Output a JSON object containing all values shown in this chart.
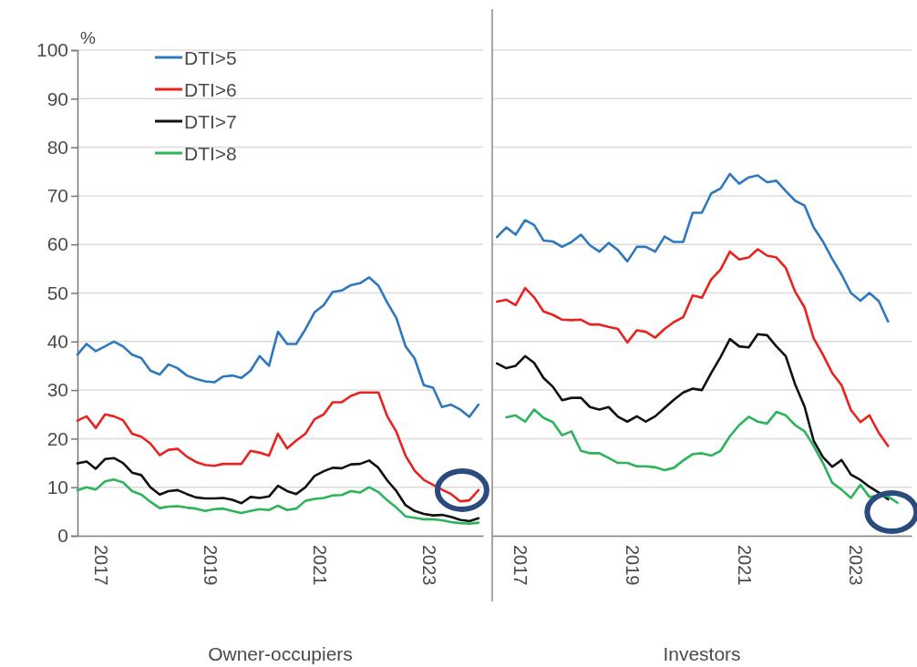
{
  "chart_data": [
    {
      "type": "line",
      "xlabel": "Owner-occupiers",
      "ylabel": "%",
      "x": [
        "2016-08",
        "2016-10",
        "2016-12",
        "2017-02",
        "2017-04",
        "2017-06",
        "2017-08",
        "2017-10",
        "2017-12",
        "2018-02",
        "2018-04",
        "2018-06",
        "2018-08",
        "2018-10",
        "2018-12",
        "2019-02",
        "2019-04",
        "2019-06",
        "2019-08",
        "2019-10",
        "2019-12",
        "2020-02",
        "2020-04",
        "2020-06",
        "2020-08",
        "2020-10",
        "2020-12",
        "2021-02",
        "2021-04",
        "2021-06",
        "2021-08",
        "2021-10",
        "2021-12",
        "2022-02",
        "2022-04",
        "2022-06",
        "2022-08",
        "2022-10",
        "2022-12",
        "2023-02",
        "2023-04",
        "2023-06",
        "2023-08",
        "2023-10",
        "2023-12"
      ],
      "series": [
        {
          "name": "DTI>5",
          "color": "#2e78c0",
          "values": [
            37.3,
            39.5,
            38,
            39,
            40,
            39,
            37.3,
            36.6,
            34,
            33.2,
            35.3,
            34.5,
            33,
            32.3,
            31.8,
            31.6,
            32.8,
            33,
            32.5,
            34,
            37,
            35,
            42,
            39.5,
            39.5,
            42.5,
            46,
            47.5,
            50.2,
            50.5,
            51.6,
            52,
            53.2,
            51.5,
            48,
            44.8,
            39,
            36.5,
            31,
            30.5,
            26.5,
            27,
            26,
            24.5,
            27
          ]
        },
        {
          "name": "DTI>6",
          "color": "#e8221e",
          "values": [
            23.7,
            24.6,
            22.2,
            25,
            24.6,
            23.8,
            21,
            20.4,
            19,
            16.6,
            17.7,
            17.9,
            16.3,
            15.2,
            14.6,
            14.4,
            14.8,
            14.8,
            14.8,
            17.5,
            17.1,
            16.5,
            21,
            18,
            19.6,
            21,
            24,
            25,
            27.5,
            27.5,
            28.8,
            29.5,
            29.5,
            29.5,
            24.6,
            21.4,
            16.5,
            13.4,
            11.5,
            10.5,
            9.5,
            8.6,
            7.1,
            7.3,
            9.4
          ]
        },
        {
          "name": "DTI>7",
          "color": "#111111",
          "values": [
            14.9,
            15.3,
            13.8,
            15.8,
            16,
            15,
            13,
            12.5,
            10,
            8.5,
            9.2,
            9.4,
            8.6,
            7.9,
            7.7,
            7.7,
            7.8,
            7.4,
            6.7,
            8,
            7.8,
            8.1,
            10.3,
            9.2,
            8.6,
            10,
            12.3,
            13.3,
            14,
            13.9,
            14.7,
            14.8,
            15.5,
            14,
            11.4,
            9.2,
            6.3,
            5.1,
            4.5,
            4.2,
            4.3,
            3.9,
            3.3,
            3,
            3.6
          ]
        },
        {
          "name": "DTI>8",
          "color": "#2db35a",
          "values": [
            9.4,
            10,
            9.5,
            11.2,
            11.6,
            11,
            9.2,
            8.5,
            7,
            5.7,
            6,
            6.1,
            5.8,
            5.6,
            5.1,
            5.5,
            5.6,
            5.1,
            4.7,
            5.1,
            5.5,
            5.3,
            6.2,
            5.3,
            5.6,
            7.2,
            7.6,
            7.8,
            8.3,
            8.4,
            9.2,
            8.9,
            10,
            9,
            7.3,
            5.8,
            4,
            3.7,
            3.4,
            3.4,
            3.2,
            2.8,
            2.6,
            2.5,
            2.7
          ]
        }
      ],
      "xlim": [
        "2016-08",
        "2024-01"
      ],
      "xticks": [
        "2017",
        "2019",
        "2021",
        "2023"
      ],
      "ylim": [
        0,
        100
      ],
      "yticks": [
        0,
        10,
        20,
        30,
        40,
        50,
        60,
        70,
        80,
        90,
        100
      ],
      "grid": "y",
      "legend": "top left"
    },
    {
      "type": "line",
      "xlabel": "Investors",
      "x": [
        "2016-08",
        "2016-10",
        "2016-12",
        "2017-02",
        "2017-04",
        "2017-06",
        "2017-08",
        "2017-10",
        "2017-12",
        "2018-02",
        "2018-04",
        "2018-06",
        "2018-08",
        "2018-10",
        "2018-12",
        "2019-02",
        "2019-04",
        "2019-06",
        "2019-08",
        "2019-10",
        "2019-12",
        "2020-02",
        "2020-04",
        "2020-06",
        "2020-08",
        "2020-10",
        "2020-12",
        "2021-02",
        "2021-04",
        "2021-06",
        "2021-08",
        "2021-10",
        "2021-12",
        "2022-02",
        "2022-04",
        "2022-06",
        "2022-08",
        "2022-10",
        "2022-12",
        "2023-02",
        "2023-04",
        "2023-06",
        "2023-08",
        "2023-10"
      ],
      "series": [
        {
          "color": "#2e78c0",
          "values": [
            61.5,
            63.5,
            62,
            65,
            64,
            60.8,
            60.6,
            59.5,
            60.5,
            62,
            59.8,
            58.5,
            60.3,
            58.8,
            56.5,
            59.5,
            59.5,
            58.5,
            61.6,
            60.5,
            60.5,
            66.5,
            66.5,
            70.5,
            71.5,
            74.5,
            72.5,
            73.8,
            74.2,
            72.8,
            73.1,
            71,
            69,
            68,
            63.5,
            60.6,
            57,
            53.8,
            50,
            48.4,
            50,
            48.3,
            44.1,
            null
          ]
        },
        {
          "color": "#e8221e",
          "values": [
            48.2,
            48.6,
            47.5,
            51,
            49.1,
            46.2,
            45.5,
            44.5,
            44.4,
            44.5,
            43.5,
            43.5,
            43,
            42.6,
            39.8,
            42.3,
            42,
            40.8,
            42.6,
            44,
            45,
            49.5,
            49,
            52.8,
            54.8,
            58.5,
            56.9,
            57.3,
            59,
            57.7,
            57.3,
            55.2,
            50.3,
            47,
            40.7,
            37.3,
            33.5,
            31,
            25.9,
            23.4,
            24.8,
            21.2,
            18.5,
            null
          ]
        },
        {
          "color": "#111111",
          "values": [
            35.5,
            34.5,
            35,
            37,
            35.6,
            32.5,
            30.7,
            27.9,
            28.4,
            28.4,
            26.5,
            26,
            26.5,
            24.5,
            23.5,
            24.6,
            23.5,
            24.6,
            26.3,
            28,
            29.5,
            30.3,
            30,
            33.5,
            36.8,
            40.5,
            39,
            38.8,
            41.5,
            41.3,
            39,
            37,
            31.2,
            26.6,
            19.6,
            16.2,
            14.2,
            15.6,
            12.6,
            11.5,
            10.1,
            8.9,
            7.5,
            null
          ]
        },
        {
          "color": "#2db35a",
          "values": [
            null,
            24.4,
            24.8,
            23.5,
            26,
            24.3,
            23.4,
            20.7,
            21.5,
            17.5,
            17,
            17,
            16,
            15,
            15,
            14.3,
            14.3,
            14.1,
            13.5,
            14,
            15.5,
            16.8,
            17,
            16.5,
            17.5,
            20.5,
            22.8,
            24.5,
            23.5,
            23.1,
            25.5,
            24.8,
            22.8,
            21.5,
            18.5,
            15,
            10.9,
            9.5,
            7.8,
            10.5,
            8,
            8.3,
            8.1,
            6.8
          ]
        }
      ],
      "xlim": [
        "2016-07",
        "2024-01"
      ],
      "xticks": [
        "2017",
        "2019",
        "2021",
        "2023"
      ],
      "ylim": [
        0,
        100
      ],
      "yticks": [
        0,
        10,
        20,
        30,
        40,
        50,
        60,
        70,
        80,
        90,
        100
      ],
      "grid": "y",
      "tick_labels": "x"
    }
  ]
}
